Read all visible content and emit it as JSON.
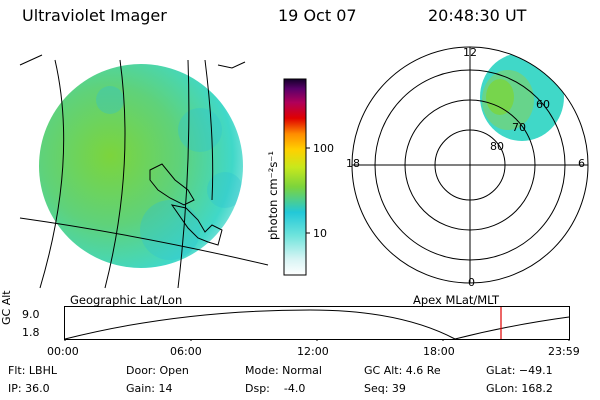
{
  "header": {
    "title": "Ultraviolet Imager",
    "date": "19 Oct 07",
    "time": "20:48:30 UT"
  },
  "colorbar": {
    "label": "photon cm⁻²s⁻¹",
    "ticks": [
      "100",
      "10"
    ]
  },
  "polar": {
    "mlt_labels": [
      "12",
      "18",
      "6",
      "0"
    ],
    "lat_labels": [
      "60",
      "70",
      "80"
    ]
  },
  "projections": {
    "left": "Geographic Lat/Lon",
    "right": "Apex MLat/MLT"
  },
  "altitude_plot": {
    "axis_label": "GC Alt",
    "y_ticks": [
      "9.0",
      "1.8"
    ],
    "x_ticks": [
      "00:00",
      "06:00",
      "12:00",
      "18:00",
      "23:59"
    ]
  },
  "info": {
    "filter": "Flt: LBHL",
    "ip": "IP: 36.0",
    "door": "Door: Open",
    "gain": "Gain: 14",
    "mode": "Mode: Normal",
    "dsp": "Dsp:    -4.0",
    "gc_alt": "GC Alt: 4.6 Re",
    "seq": "Seq: 39",
    "glat": "GLat: −49.1",
    "glon": "GLon: 168.2"
  },
  "colors": {
    "accent_marker": "#e00000",
    "aurora_teal": "#40d8c8",
    "aurora_green": "#7cd43c"
  }
}
